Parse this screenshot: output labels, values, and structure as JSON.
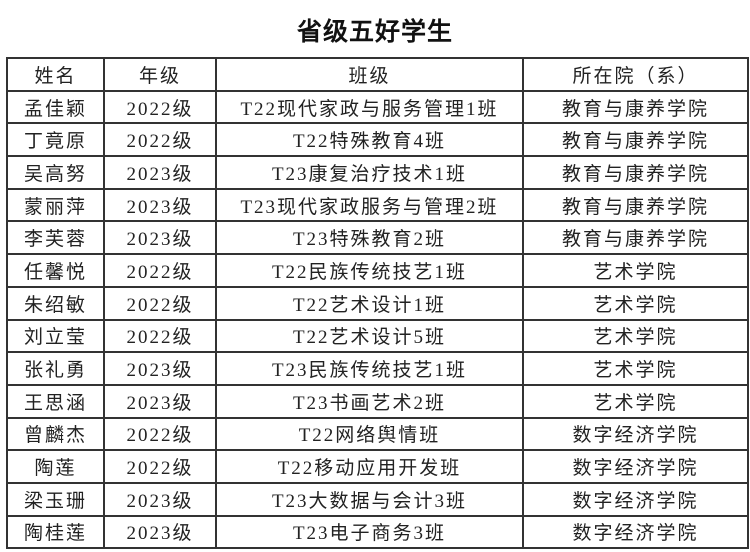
{
  "title": "省级五好学生",
  "headers": [
    "姓名",
    "年级",
    "班级",
    "所在院（系）"
  ],
  "rows": [
    [
      "孟佳颖",
      "2022级",
      "T22现代家政与服务管理1班",
      "教育与康养学院"
    ],
    [
      "丁竟原",
      "2022级",
      "T22特殊教育4班",
      "教育与康养学院"
    ],
    [
      "吴高努",
      "2023级",
      "T23康复治疗技术1班",
      "教育与康养学院"
    ],
    [
      "蒙丽萍",
      "2023级",
      "T23现代家政服务与管理2班",
      "教育与康养学院"
    ],
    [
      "李芙蓉",
      "2023级",
      "T23特殊教育2班",
      "教育与康养学院"
    ],
    [
      "任馨悦",
      "2022级",
      "T22民族传统技艺1班",
      "艺术学院"
    ],
    [
      "朱绍敏",
      "2022级",
      "T22艺术设计1班",
      "艺术学院"
    ],
    [
      "刘立莹",
      "2022级",
      "T22艺术设计5班",
      "艺术学院"
    ],
    [
      "张礼勇",
      "2023级",
      "T23民族传统技艺1班",
      "艺术学院"
    ],
    [
      "王思涵",
      "2023级",
      "T23书画艺术2班",
      "艺术学院"
    ],
    [
      "曾麟杰",
      "2022级",
      "T22网络舆情班",
      "数字经济学院"
    ],
    [
      "陶莲",
      "2022级",
      "T22移动应用开发班",
      "数字经济学院"
    ],
    [
      "梁玉珊",
      "2023级",
      "T23大数据与会计3班",
      "数字经济学院"
    ],
    [
      "陶桂莲",
      "2023级",
      "T23电子商务3班",
      "数字经济学院"
    ]
  ]
}
